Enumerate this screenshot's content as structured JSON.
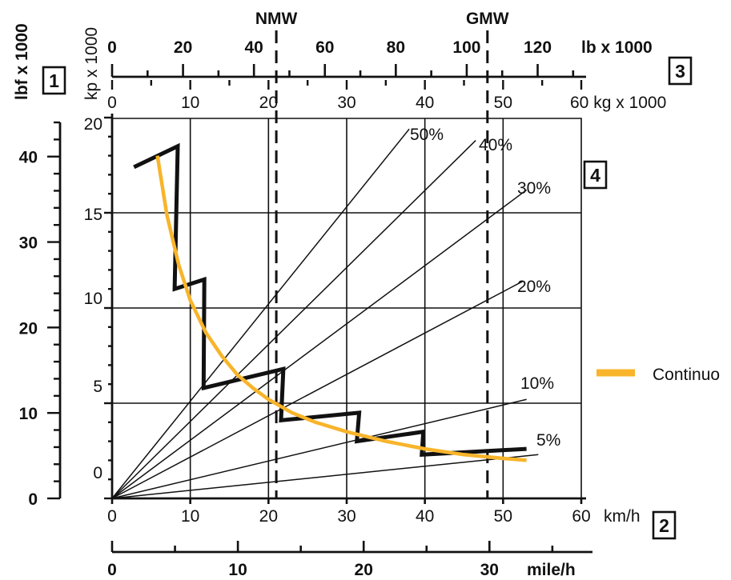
{
  "chart_data": {
    "type": "line",
    "title": "",
    "callouts": [
      "1",
      "2",
      "3",
      "4"
    ],
    "markers": [
      {
        "label": "NMW",
        "kg": 21
      },
      {
        "label": "GMW",
        "kg": 48
      }
    ],
    "axes": {
      "lbf": {
        "label": "lbf x 1000",
        "ticks": [
          "0",
          "10",
          "20",
          "30",
          "40"
        ],
        "range": [
          0,
          44
        ]
      },
      "kp": {
        "label": "kp x 1000",
        "ticks": [
          "0",
          "5",
          "10",
          "15",
          "20"
        ],
        "range": [
          0,
          20
        ]
      },
      "kmh": {
        "label": "km/h",
        "ticks": [
          "0",
          "10",
          "20",
          "30",
          "40",
          "50",
          "60"
        ],
        "range": [
          0,
          60
        ]
      },
      "mph": {
        "label": "mile/h",
        "ticks": [
          "0",
          "10",
          "20",
          "30"
        ],
        "range": [
          0,
          37.3
        ]
      },
      "kg": {
        "label": "kg x 1000",
        "ticks": [
          "0",
          "10",
          "20",
          "30",
          "40",
          "50",
          "60"
        ],
        "range": [
          0,
          60
        ]
      },
      "lb": {
        "label": "lb x 1000",
        "ticks": [
          "0",
          "20",
          "40",
          "60",
          "80",
          "100",
          "120"
        ],
        "range": [
          0,
          132.3
        ]
      }
    },
    "grades": [
      {
        "label": "50%",
        "end": {
          "kmh": 38.0,
          "kp": 19.4
        }
      },
      {
        "label": "40%",
        "end": {
          "kmh": 46.5,
          "kp": 18.8
        }
      },
      {
        "label": "30%",
        "end": {
          "kmh": 53.0,
          "kp": 16.2
        }
      },
      {
        "label": "20%",
        "end": {
          "kmh": 52.5,
          "kp": 11.4
        }
      },
      {
        "label": "10%",
        "end": {
          "kmh": 53.0,
          "kp": 5.2
        }
      },
      {
        "label": "5%",
        "end": {
          "kmh": 54.5,
          "kp": 2.3
        }
      }
    ],
    "series": [
      {
        "name": "",
        "color": "#111111",
        "points": [
          [
            2.8,
            17.4
          ],
          [
            8.4,
            18.5
          ],
          [
            8.0,
            11.0
          ],
          [
            11.8,
            11.5
          ],
          [
            11.7,
            5.8
          ],
          [
            21.9,
            6.8
          ],
          [
            21.6,
            4.1
          ],
          [
            31.6,
            4.5
          ],
          [
            31.3,
            3.0
          ],
          [
            39.8,
            3.5
          ],
          [
            39.6,
            2.3
          ],
          [
            53.0,
            2.6
          ]
        ]
      },
      {
        "name": "Continuo",
        "color": "#F8B42A",
        "points": [
          [
            5.8,
            18.0
          ],
          [
            7.0,
            14.9
          ],
          [
            8.5,
            12.3
          ],
          [
            10.0,
            10.4
          ],
          [
            12.0,
            8.7
          ],
          [
            14.0,
            7.5
          ],
          [
            16.0,
            6.5
          ],
          [
            18.0,
            5.8
          ],
          [
            20.0,
            5.2
          ],
          [
            23.0,
            4.5
          ],
          [
            26.0,
            4.0
          ],
          [
            30.0,
            3.5
          ],
          [
            35.0,
            3.0
          ],
          [
            40.0,
            2.6
          ],
          [
            45.0,
            2.3
          ],
          [
            50.0,
            2.1
          ],
          [
            53.0,
            2.0
          ]
        ]
      }
    ],
    "legend": {
      "position": "right",
      "entries": [
        "Continuo"
      ]
    },
    "grid": true
  }
}
